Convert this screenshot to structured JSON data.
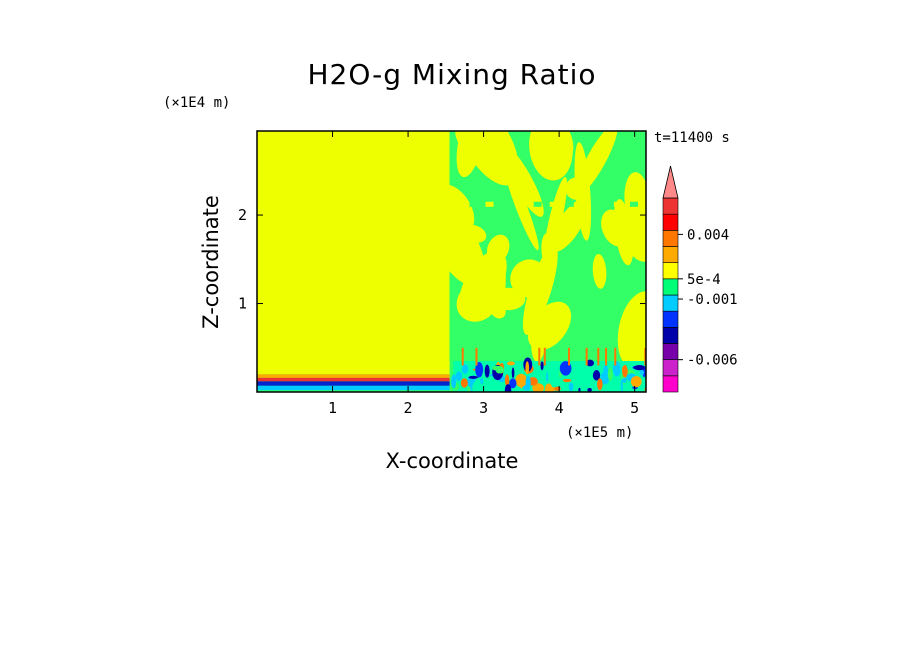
{
  "chart_data": {
    "type": "heatmap",
    "title": "H2O-g Mixing Ratio",
    "xlabel": "X-coordinate",
    "ylabel": "Z-coordinate",
    "x_unit": "(×1E5 m)",
    "y_unit": "(×1E4 m)",
    "time_label": "t=11400 s",
    "xlim": [
      0,
      5.15
    ],
    "ylim": [
      0,
      2.95
    ],
    "x_ticks": [
      1,
      2,
      3,
      4,
      5
    ],
    "y_ticks": [
      1,
      2
    ],
    "x_tick_labels": [
      "1",
      "2",
      "3",
      "4",
      "5"
    ],
    "y_tick_labels": [
      "1",
      "2"
    ],
    "colorbar": {
      "colors": [
        "#ff00cc",
        "#cc22cc",
        "#7700aa",
        "#0000aa",
        "#0033ff",
        "#00ccff",
        "#00ff77",
        "#ffff00",
        "#ffaa00",
        "#ff7700",
        "#ff0000",
        "#ee3333",
        "#ff8888"
      ],
      "labels": [
        {
          "text": "-0.006",
          "level": 2
        },
        {
          "text": "-0.001",
          "level": 5.75
        },
        {
          "text": "5e-4",
          "level": 7.0
        },
        {
          "text": "0.004",
          "level": 9.75
        }
      ]
    },
    "regions": [
      {
        "x": [
          0,
          2.55
        ],
        "z": [
          0.2,
          2.95
        ],
        "color": "#eeff00"
      },
      {
        "x": [
          2.55,
          5.15
        ],
        "z": [
          0.35,
          2.95
        ],
        "color": "#33ff66"
      },
      {
        "x": [
          0,
          2.55
        ],
        "z": [
          0.16,
          0.2
        ],
        "color": "#ffaa00"
      },
      {
        "x": [
          0,
          2.55
        ],
        "z": [
          0.12,
          0.16
        ],
        "color": "#ee3333"
      },
      {
        "x": [
          0,
          2.55
        ],
        "z": [
          0.07,
          0.12
        ],
        "color": "#0022cc"
      },
      {
        "x": [
          0,
          2.55
        ],
        "z": [
          0.02,
          0.07
        ],
        "color": "#00ccff"
      }
    ]
  }
}
